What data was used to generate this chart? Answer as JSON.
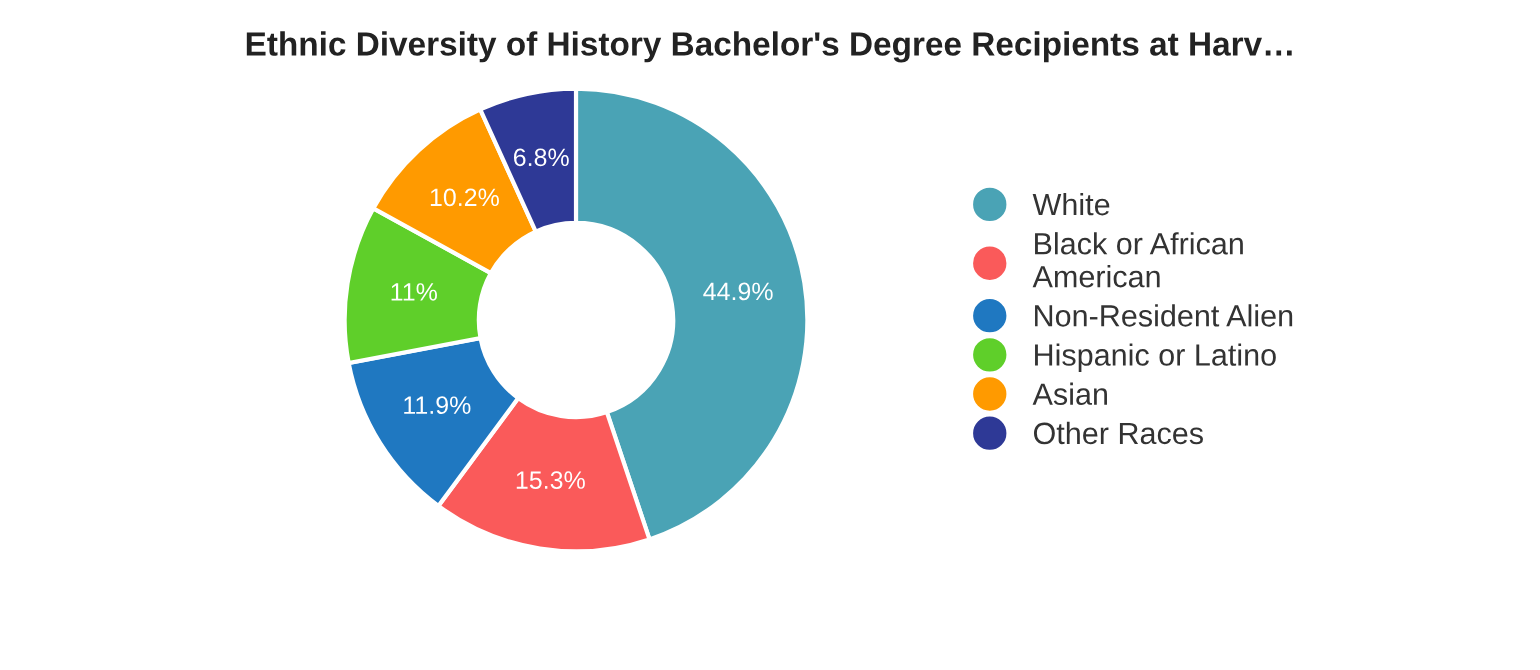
{
  "chart_data": {
    "type": "donut",
    "title": "Ethnic Diversity of History Bachelor's Degree Recipients at Harv…",
    "categories": [
      "White",
      "Black or African\nAmerican",
      "Non-Resident Alien",
      "Hispanic or Latino",
      "Asian",
      "Other Races"
    ],
    "values": [
      44.9,
      15.3,
      11.9,
      11,
      10.2,
      6.8
    ],
    "colors": [
      "#4aa3b5",
      "#fa5a5a",
      "#1f78c1",
      "#5fcf2a",
      "#ff9a00",
      "#2e3996"
    ],
    "value_labels": [
      "44.9%",
      "15.3%",
      "11.9%",
      "11%",
      "10.2%",
      "6.8%"
    ],
    "legend": "right"
  }
}
